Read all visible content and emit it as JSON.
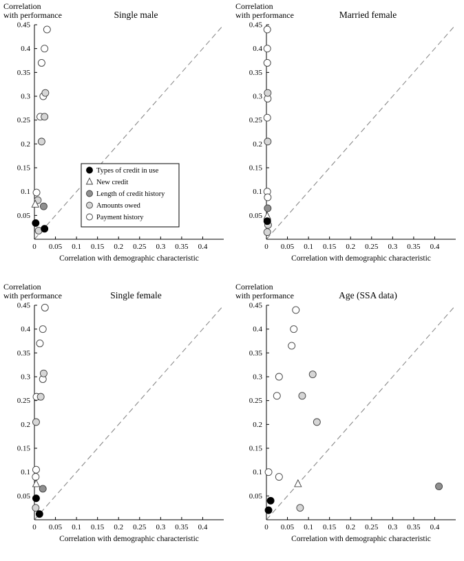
{
  "figure": {
    "y_axis_title_lines": [
      "Correlation",
      "with performance"
    ],
    "x_axis_title": "Correlation with demographic characteristic"
  },
  "colors": {
    "types_of_credit": "#000000",
    "new_credit_fill": "#ffffff",
    "length_of_credit": "#909090",
    "amounts_owed": "#d6d6d6",
    "payment_history": "#ffffff",
    "marker_stroke": "#3d3d3d",
    "dashed_line": "#888888",
    "axis": "#000000"
  },
  "legend": {
    "entries": [
      {
        "label": "Types of credit in use",
        "marker": "circle",
        "fill": "#000000",
        "stroke": "#000000"
      },
      {
        "label": "New credit",
        "marker": "triangle",
        "fill": "#ffffff",
        "stroke": "#3d3d3d"
      },
      {
        "label": "Length of credit history",
        "marker": "circle",
        "fill": "#909090",
        "stroke": "#3d3d3d"
      },
      {
        "label": "Amounts owed",
        "marker": "circle",
        "fill": "#d6d6d6",
        "stroke": "#3d3d3d"
      },
      {
        "label": "Payment history",
        "marker": "circle",
        "fill": "#ffffff",
        "stroke": "#3d3d3d"
      }
    ]
  },
  "chart_data": [
    {
      "type": "scatter",
      "title": "Single male",
      "xlabel": "Correlation with demographic characteristic",
      "ylabel_lines": [
        "Correlation",
        "with performance"
      ],
      "xlim": [
        0,
        0.45
      ],
      "ylim": [
        0,
        0.45
      ],
      "xticks": [
        0,
        0.05,
        0.1,
        0.15,
        0.2,
        0.25,
        0.3,
        0.35,
        0.4
      ],
      "yticks": [
        0.05,
        0.1,
        0.15,
        0.2,
        0.25,
        0.3,
        0.35,
        0.4,
        0.45
      ],
      "diagonal": {
        "from": [
          0,
          0
        ],
        "to": [
          0.45,
          0.45
        ],
        "style": "dashed"
      },
      "show_legend": true,
      "series": [
        {
          "name": "Payment history",
          "points": [
            [
              0.03,
              0.44
            ],
            [
              0.024,
              0.4
            ],
            [
              0.017,
              0.37
            ],
            [
              0.021,
              0.3
            ],
            [
              0.014,
              0.257
            ],
            [
              0.005,
              0.098
            ]
          ]
        },
        {
          "name": "Amounts owed",
          "points": [
            [
              0.026,
              0.307
            ],
            [
              0.024,
              0.257
            ],
            [
              0.017,
              0.205
            ],
            [
              0.008,
              0.082
            ],
            [
              0.01,
              0.018
            ]
          ]
        },
        {
          "name": "Length of credit history",
          "points": [
            [
              0.022,
              0.069
            ]
          ]
        },
        {
          "name": "New credit",
          "points": [
            [
              0.002,
              0.073
            ]
          ]
        },
        {
          "name": "Types of credit in use",
          "points": [
            [
              0.003,
              0.034
            ],
            [
              0.024,
              0.022
            ]
          ]
        }
      ]
    },
    {
      "type": "scatter",
      "title": "Married female",
      "xlabel": "Correlation with demographic characteristic",
      "ylabel_lines": [
        "Correlation",
        "with performance"
      ],
      "xlim": [
        0,
        0.45
      ],
      "ylim": [
        0,
        0.45
      ],
      "xticks": [
        0,
        0.05,
        0.1,
        0.15,
        0.2,
        0.25,
        0.3,
        0.35,
        0.4
      ],
      "yticks": [
        0.05,
        0.1,
        0.15,
        0.2,
        0.25,
        0.3,
        0.35,
        0.4,
        0.45
      ],
      "diagonal": {
        "from": [
          0,
          0
        ],
        "to": [
          0.45,
          0.45
        ],
        "style": "dashed"
      },
      "show_legend": false,
      "series": [
        {
          "name": "Payment history",
          "points": [
            [
              0.002,
              0.44
            ],
            [
              0.002,
              0.4
            ],
            [
              0.002,
              0.37
            ],
            [
              0.003,
              0.295
            ],
            [
              0.002,
              0.255
            ],
            [
              0.002,
              0.1
            ],
            [
              0.003,
              0.088
            ]
          ]
        },
        {
          "name": "Amounts owed",
          "points": [
            [
              0.003,
              0.307
            ],
            [
              0.003,
              0.205
            ],
            [
              0.004,
              0.03
            ],
            [
              0.002,
              0.015
            ]
          ]
        },
        {
          "name": "Length of credit history",
          "points": [
            [
              0.003,
              0.065
            ]
          ]
        },
        {
          "name": "New credit",
          "points": [
            [
              0.002,
              0.048
            ]
          ]
        },
        {
          "name": "Types of credit in use",
          "points": [
            [
              0.002,
              0.038
            ]
          ]
        }
      ]
    },
    {
      "type": "scatter",
      "title": "Single female",
      "xlabel": "Correlation with demographic characteristic",
      "ylabel_lines": [
        "Correlation",
        "with performance"
      ],
      "xlim": [
        0,
        0.45
      ],
      "ylim": [
        0,
        0.45
      ],
      "xticks": [
        0,
        0.05,
        0.1,
        0.15,
        0.2,
        0.25,
        0.3,
        0.35,
        0.4
      ],
      "yticks": [
        0.05,
        0.1,
        0.15,
        0.2,
        0.25,
        0.3,
        0.35,
        0.4,
        0.45
      ],
      "diagonal": {
        "from": [
          0,
          0
        ],
        "to": [
          0.45,
          0.45
        ],
        "style": "dashed"
      },
      "show_legend": false,
      "series": [
        {
          "name": "Payment history",
          "points": [
            [
              0.025,
              0.445
            ],
            [
              0.02,
              0.4
            ],
            [
              0.013,
              0.37
            ],
            [
              0.02,
              0.295
            ],
            [
              0.005,
              0.258
            ],
            [
              0.004,
              0.105
            ],
            [
              0.003,
              0.09
            ]
          ]
        },
        {
          "name": "Amounts owed",
          "points": [
            [
              0.022,
              0.307
            ],
            [
              0.015,
              0.258
            ],
            [
              0.004,
              0.205
            ],
            [
              0.003,
              0.025
            ]
          ]
        },
        {
          "name": "Length of credit history",
          "points": [
            [
              0.02,
              0.065
            ]
          ]
        },
        {
          "name": "New credit",
          "points": [
            [
              0.004,
              0.075
            ]
          ]
        },
        {
          "name": "Types of credit in use",
          "points": [
            [
              0.004,
              0.045
            ],
            [
              0.012,
              0.012
            ]
          ]
        }
      ]
    },
    {
      "type": "scatter",
      "title": "Age (SSA data)",
      "xlabel": "Correlation with demographic characteristic",
      "ylabel_lines": [
        "Correlation",
        "with performance"
      ],
      "xlim": [
        0,
        0.45
      ],
      "ylim": [
        0,
        0.45
      ],
      "xticks": [
        0,
        0.05,
        0.1,
        0.15,
        0.2,
        0.25,
        0.3,
        0.35,
        0.4
      ],
      "yticks": [
        0.05,
        0.1,
        0.15,
        0.2,
        0.25,
        0.3,
        0.35,
        0.4,
        0.45
      ],
      "diagonal": {
        "from": [
          0,
          0
        ],
        "to": [
          0.45,
          0.45
        ],
        "style": "dashed"
      },
      "show_legend": false,
      "series": [
        {
          "name": "Payment history",
          "points": [
            [
              0.07,
              0.44
            ],
            [
              0.065,
              0.4
            ],
            [
              0.06,
              0.365
            ],
            [
              0.03,
              0.3
            ],
            [
              0.025,
              0.26
            ],
            [
              0.005,
              0.1
            ],
            [
              0.03,
              0.09
            ]
          ]
        },
        {
          "name": "Amounts owed",
          "points": [
            [
              0.11,
              0.305
            ],
            [
              0.085,
              0.26
            ],
            [
              0.12,
              0.205
            ],
            [
              0.08,
              0.025
            ]
          ]
        },
        {
          "name": "Length of credit history",
          "points": [
            [
              0.41,
              0.07
            ]
          ]
        },
        {
          "name": "New credit",
          "points": [
            [
              0.075,
              0.075
            ]
          ]
        },
        {
          "name": "Types of credit in use",
          "points": [
            [
              0.01,
              0.04
            ],
            [
              0.005,
              0.02
            ]
          ]
        }
      ]
    }
  ]
}
